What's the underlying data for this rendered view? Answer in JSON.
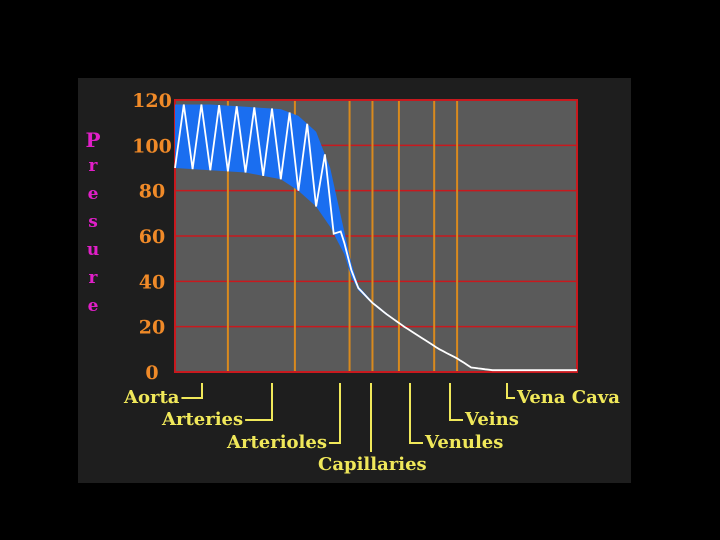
{
  "chart_data": {
    "type": "line",
    "ylabel": "Presure",
    "yticks": [
      0,
      20,
      40,
      60,
      80,
      100,
      120
    ],
    "ylim": [
      0,
      120
    ],
    "grid": true,
    "categories": [
      "Aorta",
      "Arteries",
      "Arterioles",
      "Capillaries",
      "Venules",
      "Veins",
      "Vena Cava"
    ],
    "series": [
      {
        "role": "systolic_envelope",
        "points": [
          [
            0,
            118
          ],
          [
            1,
            118
          ],
          [
            2,
            117
          ],
          [
            3,
            116
          ],
          [
            3.5,
            113
          ],
          [
            4,
            106
          ],
          [
            4.4,
            90
          ],
          [
            4.6,
            76
          ],
          [
            4.8,
            62
          ],
          [
            5.0,
            48
          ],
          [
            5.2,
            38
          ],
          [
            5.6,
            31
          ],
          [
            6.0,
            26
          ],
          [
            6.5,
            20
          ],
          [
            7.0,
            15
          ],
          [
            7.5,
            10
          ],
          [
            8.0,
            6
          ],
          [
            8.4,
            2
          ],
          [
            9.0,
            0.8
          ],
          [
            10.0,
            0.8
          ],
          [
            11.4,
            0.8
          ]
        ]
      },
      {
        "role": "diastolic_envelope",
        "points": [
          [
            0,
            90
          ],
          [
            1,
            89
          ],
          [
            2,
            88
          ],
          [
            3,
            85
          ],
          [
            3.5,
            80
          ],
          [
            4,
            73
          ],
          [
            4.4,
            64
          ],
          [
            4.6,
            58
          ],
          [
            4.8,
            52
          ],
          [
            5.0,
            42
          ],
          [
            5.2,
            36
          ],
          [
            5.6,
            30
          ],
          [
            6.0,
            25
          ],
          [
            6.5,
            20
          ],
          [
            7.0,
            15
          ],
          [
            7.5,
            10
          ],
          [
            8.0,
            6
          ],
          [
            8.4,
            2
          ],
          [
            9.0,
            0.8
          ],
          [
            10.0,
            0.8
          ],
          [
            11.4,
            0.8
          ]
        ]
      }
    ],
    "colors": {
      "band": "#1a6ef0",
      "line": "#ffffff",
      "grid_red": "#c8191e",
      "grid_orange": "#d98a1e",
      "plot_bg": "#5a5a5a",
      "panel_bg": "#1e1e1e",
      "ylabel": "#e11fc8",
      "ticks": "#f08a28",
      "category_labels": "#f0e85a"
    }
  }
}
